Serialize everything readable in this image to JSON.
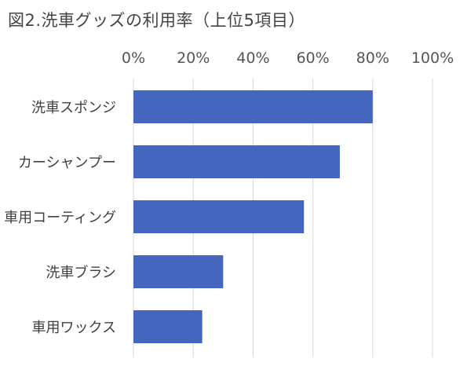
{
  "chart_data": {
    "type": "bar",
    "orientation": "horizontal",
    "title": "図2.洗車グッズの利用率（上位5項目）",
    "categories": [
      "洗車スポンジ",
      "カーシャンプー",
      "車用コーティング",
      "洗車ブラシ",
      "車用ワックス"
    ],
    "series": [
      {
        "values": [
          80,
          69,
          57,
          30,
          23
        ]
      }
    ],
    "xlim": [
      0,
      100
    ],
    "xticks": [
      0,
      20,
      40,
      60,
      80,
      100
    ],
    "tick_labels": [
      "0%",
      "20%",
      "40%",
      "60%",
      "80%",
      "100%"
    ],
    "axis_position": "top",
    "grid": true,
    "legend": "none",
    "colors": {
      "bar": "#4566BE",
      "grid": "#D9D9D9"
    }
  }
}
